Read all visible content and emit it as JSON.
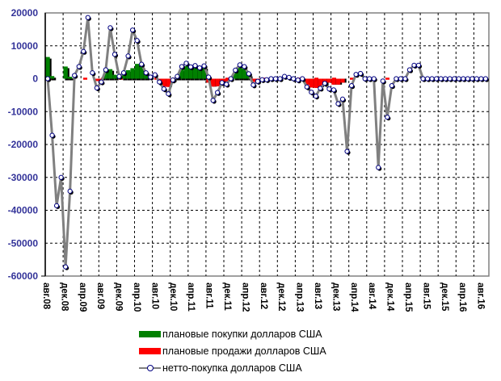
{
  "chart_data": {
    "type": "bar+line",
    "title": "",
    "xlabel": "",
    "ylabel": "",
    "ylim": [
      -60000,
      20000
    ],
    "yticks": [
      "20000",
      "10000",
      "0",
      "-10000",
      "-20000",
      "-30000",
      "-40000",
      "-50000",
      "-60000"
    ],
    "ytick_values": [
      20000,
      10000,
      0,
      -10000,
      -20000,
      -30000,
      -40000,
      -50000,
      -60000
    ],
    "x_start": "авг.08",
    "x_frequency": "monthly",
    "xtick_every_months": 4,
    "xticks": [
      "авг.08",
      "дек.08",
      "апр.09",
      "авг.09",
      "дек.09",
      "апр.10",
      "авг.10",
      "дек.10",
      "апр.11",
      "авг.11",
      "дек.11",
      "апр.12",
      "авг.12",
      "дек.12",
      "апр.13",
      "авг.13",
      "дек.13",
      "апр.14",
      "авг.14",
      "дек.14",
      "апр.15",
      "авг.15",
      "дек.15",
      "апр.16",
      "авг.16"
    ],
    "grid": true,
    "legend_position": "bottom",
    "series": [
      {
        "name": "плановые покупки долларов США",
        "type": "bar",
        "color": "#008000",
        "values": [
          6600,
          800,
          0,
          0,
          3700,
          600,
          0,
          0,
          0,
          0,
          0,
          0,
          0,
          2400,
          2900,
          1200,
          0,
          2200,
          2600,
          3200,
          4500,
          3600,
          1200,
          0,
          0,
          0,
          0,
          0,
          0,
          600,
          2800,
          3800,
          3600,
          3700,
          3200,
          3500,
          0,
          0,
          0,
          0,
          0,
          0,
          2300,
          3500,
          3000,
          1200,
          0,
          0,
          0,
          0,
          0,
          0,
          0,
          0,
          0,
          0,
          0,
          0,
          0,
          0,
          0,
          0,
          0,
          0,
          0,
          0,
          0,
          0,
          0,
          0,
          0,
          0,
          0,
          0,
          0,
          0,
          0,
          0,
          0,
          0,
          0,
          0,
          0,
          0,
          0,
          0,
          0,
          0,
          0,
          0,
          0,
          0,
          0,
          0,
          0,
          0,
          0,
          0,
          0
        ]
      },
      {
        "name": "плановые продажи долларов США",
        "type": "bar",
        "color": "#ff0000",
        "values": [
          0,
          0,
          0,
          0,
          0,
          0,
          0,
          0,
          0,
          0,
          0,
          -700,
          -500,
          0,
          0,
          0,
          0,
          0,
          0,
          0,
          0,
          0,
          0,
          0,
          0,
          -1200,
          -2400,
          -2500,
          -1000,
          0,
          0,
          0,
          0,
          0,
          0,
          0,
          -1200,
          -2400,
          -2300,
          -1200,
          -800,
          0,
          0,
          0,
          0,
          0,
          -1000,
          -600,
          0,
          0,
          0,
          0,
          0,
          0,
          0,
          0,
          0,
          0,
          -1800,
          -2700,
          -2800,
          -2600,
          -2200,
          -1200,
          -1800,
          -1800,
          -1200,
          0,
          0,
          0,
          0,
          0,
          0,
          0,
          0,
          0,
          0,
          0,
          0,
          0,
          0,
          0,
          0,
          0,
          0,
          0,
          0,
          0,
          0,
          0,
          0,
          0,
          0,
          0,
          0,
          0,
          0,
          0,
          0
        ]
      },
      {
        "name": "нетто-покупка долларов США",
        "type": "line",
        "color": "#808080",
        "marker_color": "#000080",
        "values": [
          0,
          -17200,
          -38600,
          -30000,
          -57200,
          -34200,
          1000,
          3700,
          8300,
          18600,
          1800,
          -2800,
          -1000,
          2700,
          15500,
          7400,
          700,
          1800,
          6900,
          14800,
          11600,
          4400,
          1800,
          500,
          1200,
          -1000,
          -3100,
          -4600,
          -400,
          700,
          3700,
          4700,
          3600,
          4000,
          3300,
          3900,
          500,
          -6600,
          -4200,
          -1200,
          -1700,
          0,
          2600,
          4200,
          3700,
          1500,
          -1900,
          -800,
          -300,
          -300,
          0,
          0,
          0,
          700,
          400,
          0,
          -400,
          0,
          -2500,
          -4100,
          -5300,
          -2900,
          -1400,
          -3100,
          -3400,
          -7600,
          -6200,
          -22100,
          -2100,
          1300,
          1600,
          0,
          0,
          0,
          -27000,
          -700,
          -11700,
          -2100,
          0,
          0,
          0,
          2700,
          4100,
          4100,
          0,
          0,
          0,
          0,
          0,
          0,
          0,
          0,
          0,
          0,
          0,
          0,
          0,
          0,
          0
        ]
      }
    ]
  }
}
